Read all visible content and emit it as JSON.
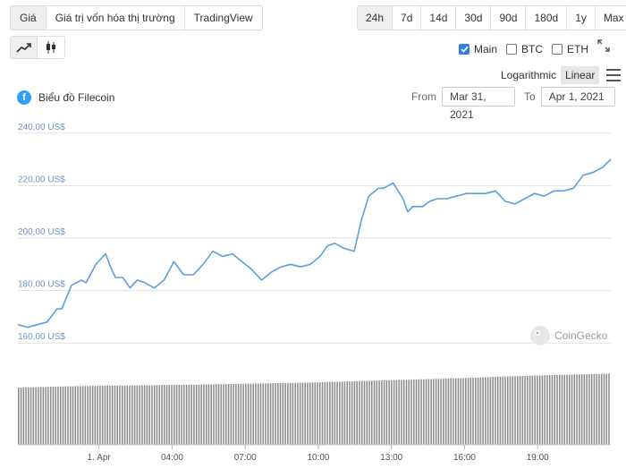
{
  "view_tabs": [
    {
      "label": "Giá",
      "active": true
    },
    {
      "label": "Giá trị vốn hóa thị trường",
      "active": false
    },
    {
      "label": "TradingView",
      "active": false
    }
  ],
  "range_tabs": [
    {
      "label": "24h",
      "active": true
    },
    {
      "label": "7d",
      "active": false
    },
    {
      "label": "14d",
      "active": false
    },
    {
      "label": "30d",
      "active": false
    },
    {
      "label": "90d",
      "active": false
    },
    {
      "label": "180d",
      "active": false
    },
    {
      "label": "1y",
      "active": false
    },
    {
      "label": "Max",
      "active": false
    }
  ],
  "chart_types": {
    "selected": "line",
    "options": [
      "line-chart-icon",
      "candlestick-icon"
    ]
  },
  "series_toggles": [
    {
      "label": "Main",
      "checked": true
    },
    {
      "label": "BTC",
      "checked": false
    },
    {
      "label": "ETH",
      "checked": false
    }
  ],
  "scale": {
    "logarithmic": "Logarithmic",
    "linear": "Linear",
    "selected": "Linear"
  },
  "chart_title": "Biểu đồ Filecoin",
  "coin_symbol": "f",
  "date_range": {
    "from_label": "From",
    "from_value": "Mar 31, 2021",
    "to_label": "To",
    "to_value": "Apr 1, 2021"
  },
  "watermark": "CoinGecko",
  "colors": {
    "line": "#5d9ede",
    "volume": "#8a8a8a",
    "accent": "#2f7ee6",
    "coin": "#2f9ef5"
  },
  "chart_data": {
    "type": "line",
    "y_ticks": [
      "160,00 US$",
      "180,00 US$",
      "200,00 US$",
      "220,00 US$",
      "240,00 US$"
    ],
    "ylim": [
      157,
      243
    ],
    "x_ticks": [
      {
        "label": "1. Apr",
        "t": 3.33
      },
      {
        "label": "04:00",
        "t": 6.33
      },
      {
        "label": "07:00",
        "t": 9.33
      },
      {
        "label": "10:00",
        "t": 12.33
      },
      {
        "label": "13:00",
        "t": 15.33
      },
      {
        "label": "16:00",
        "t": 18.33
      },
      {
        "label": "19:00",
        "t": 21.33
      }
    ],
    "x_range": [
      0,
      24.33
    ],
    "series": [
      {
        "name": "Main",
        "x": [
          0,
          0.4,
          0.8,
          1.2,
          1.6,
          1.8,
          2.2,
          2.6,
          2.8,
          3.2,
          3.6,
          3.8,
          4.0,
          4.3,
          4.6,
          4.9,
          5.2,
          5.6,
          6.0,
          6.4,
          6.8,
          7.2,
          7.6,
          8.0,
          8.4,
          8.8,
          9.2,
          9.6,
          10.0,
          10.4,
          10.8,
          11.2,
          11.6,
          12.0,
          12.4,
          12.7,
          13.0,
          13.4,
          13.8,
          14.1,
          14.4,
          14.8,
          15.0,
          15.4,
          15.8,
          16.0,
          16.2,
          16.6,
          16.9,
          17.2,
          17.6,
          18.0,
          18.4,
          18.8,
          19.2,
          19.6,
          20.0,
          20.4,
          20.8,
          21.2,
          21.6,
          22.0,
          22.4,
          22.8,
          23.2,
          23.6,
          24.0,
          24.33
        ],
        "y": [
          167,
          166,
          167,
          168,
          173,
          173,
          182,
          184,
          183,
          190,
          194,
          189,
          185,
          185,
          181,
          184,
          183,
          181,
          184,
          191,
          186,
          186,
          190,
          195,
          193,
          194,
          191,
          188,
          184,
          187,
          189,
          190,
          189,
          190,
          193,
          197,
          198,
          196,
          195,
          207,
          216,
          219,
          219,
          221,
          215,
          210,
          212,
          212,
          214,
          215,
          215,
          216,
          217,
          217,
          217,
          218,
          214,
          213,
          215,
          217,
          216,
          218,
          218,
          219,
          224,
          225,
          227,
          230
        ]
      }
    ],
    "volume": {
      "count": 240,
      "base": 0.78,
      "level_points": [
        [
          0,
          0.78
        ],
        [
          0.1,
          0.8
        ],
        [
          0.3,
          0.82
        ],
        [
          0.5,
          0.85
        ],
        [
          0.62,
          0.88
        ],
        [
          0.72,
          0.9
        ],
        [
          0.82,
          0.93
        ],
        [
          0.9,
          0.95
        ],
        [
          1,
          0.97
        ]
      ]
    }
  }
}
